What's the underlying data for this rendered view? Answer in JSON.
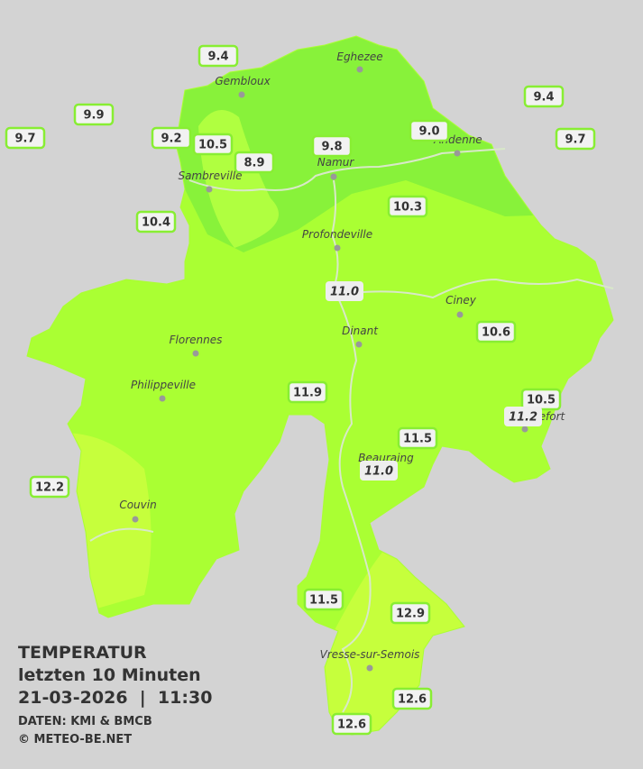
{
  "title": "TEMPERATUR",
  "subtitle": "letzten 10 Minuten",
  "timestamp": "21-03-2026  |  11:30",
  "source": "DATEN: KMI & BMCB",
  "copyright": "© METEO-BE.NET",
  "cities": [
    "Eghezee",
    "Gembloux",
    "Andenne",
    "Namur",
    "Sambreville",
    "Profondeville",
    "Ciney",
    "Dinant",
    "Florennes",
    "Philippeville",
    "Rochefort",
    "Beauraing",
    "Couvin",
    "Vresse-sur-Semois"
  ],
  "stations": [
    {
      "value": "9.4"
    },
    {
      "value": "9.9"
    },
    {
      "value": "9.7"
    },
    {
      "value": "9.2"
    },
    {
      "value": "10.5"
    },
    {
      "value": "8.9"
    },
    {
      "value": "9.8"
    },
    {
      "value": "9.0"
    },
    {
      "value": "9.4"
    },
    {
      "value": "9.7"
    },
    {
      "value": "10.4"
    },
    {
      "value": "10.3"
    },
    {
      "value": "11.0",
      "italic": true
    },
    {
      "value": "10.6"
    },
    {
      "value": "11.9"
    },
    {
      "value": "10.5"
    },
    {
      "value": "11.2",
      "italic": true
    },
    {
      "value": "11.5"
    },
    {
      "value": "11.0",
      "italic": true
    },
    {
      "value": "12.2"
    },
    {
      "value": "11.5"
    },
    {
      "value": "12.9"
    },
    {
      "value": "12.6"
    },
    {
      "value": "12.6"
    }
  ]
}
